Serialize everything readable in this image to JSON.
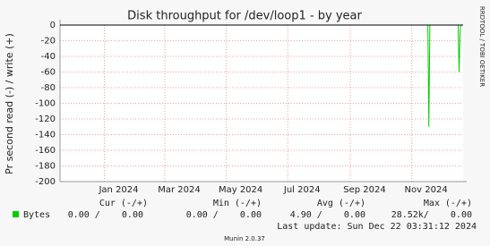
{
  "chart_data": {
    "type": "line",
    "title": "Disk throughput for /dev/loop1 - by year",
    "y_label": "Pr second read (-) / write (+)",
    "watermark": "RRDTOOL / TOBI OETIKER",
    "x": [
      "2023-11-18",
      "2024-11-17",
      "2024-11-18",
      "2024-11-19",
      "2024-12-17",
      "2024-12-18",
      "2024-12-19",
      "2024-12-20",
      "2024-12-22"
    ],
    "series": [
      {
        "name": "Bytes",
        "color": "#00cc00",
        "values": [
          0,
          0,
          -130,
          0,
          0,
          -60,
          -5,
          0,
          0
        ]
      }
    ],
    "xlim": [
      "2023-11-18",
      "2024-12-22"
    ],
    "xticks": [
      {
        "value": "2024-01-01",
        "label": "Jan 2024"
      },
      {
        "value": "2024-03-01",
        "label": "Mar 2024"
      },
      {
        "value": "2024-05-01",
        "label": "May 2024"
      },
      {
        "value": "2024-07-01",
        "label": "Jul 2024"
      },
      {
        "value": "2024-09-01",
        "label": "Sep 2024"
      },
      {
        "value": "2024-11-01",
        "label": "Nov 2024"
      }
    ],
    "ylim": [
      -200,
      0
    ],
    "yticks": [
      0,
      -20,
      -40,
      -60,
      -80,
      -100,
      -120,
      -140,
      -160,
      -180,
      -200
    ],
    "grid": true,
    "summary": {
      "headers": [
        "Cur (-/+)",
        "Min (-/+)",
        "Avg (-/+)",
        "Max (-/+)"
      ],
      "row": [
        "0.00 /    0.00",
        "0.00 /    0.00",
        "4.90 /    0.00",
        "28.52k/    0.00"
      ]
    },
    "last_update": "Last update: Sun Dec 22 03:31:12 2024",
    "credit": "Munin 2.0.37"
  }
}
